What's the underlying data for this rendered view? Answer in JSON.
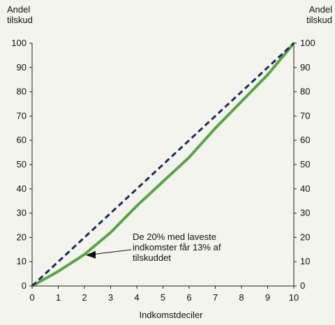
{
  "chart_data": {
    "type": "line",
    "ylabel_lines": [
      "Andel",
      "tilskud"
    ],
    "xlabel": "Indkomstdeciler",
    "xlim": [
      0,
      10
    ],
    "ylim": [
      0,
      100
    ],
    "x_ticks": [
      0,
      1,
      2,
      3,
      4,
      5,
      6,
      7,
      8,
      9,
      10
    ],
    "y_ticks": [
      0,
      10,
      20,
      30,
      40,
      50,
      60,
      70,
      80,
      90,
      100
    ],
    "grid": false,
    "series": [
      {
        "style": "solid",
        "color": "#5aa34a",
        "x": [
          0,
          1,
          2,
          3,
          4,
          5,
          6,
          7,
          8,
          9,
          10
        ],
        "y": [
          0,
          6,
          13,
          22,
          33,
          43,
          53,
          65,
          76,
          87,
          100
        ]
      },
      {
        "style": "dashed",
        "color": "#1f2a55",
        "x": [
          0,
          10
        ],
        "y": [
          0,
          100
        ]
      }
    ],
    "annotation": {
      "lines": [
        "De 20% med laveste",
        "indkomster får 13% af",
        "tilskuddet"
      ],
      "points_to": {
        "x": 2,
        "y": 13
      }
    }
  }
}
